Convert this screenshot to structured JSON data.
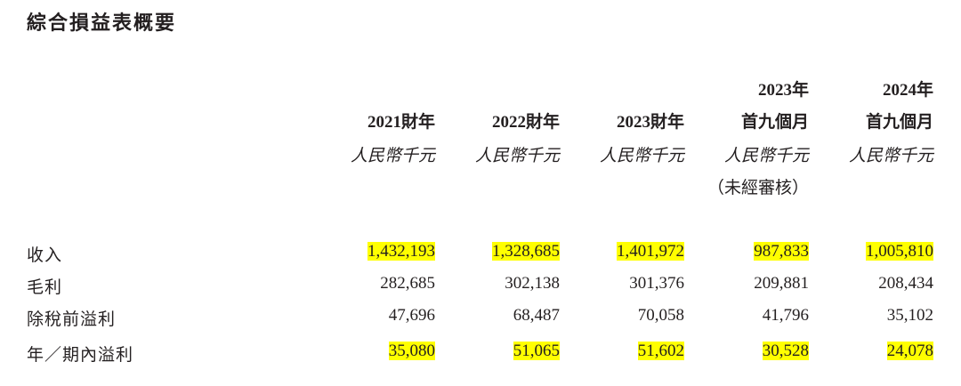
{
  "title": "綜合損益表概要",
  "columns": [
    {
      "line1": "",
      "line2": "2021財年",
      "unit": "人民幣千元",
      "note": ""
    },
    {
      "line1": "",
      "line2": "2022財年",
      "unit": "人民幣千元",
      "note": ""
    },
    {
      "line1": "",
      "line2": "2023財年",
      "unit": "人民幣千元",
      "note": ""
    },
    {
      "line1": "2023年",
      "line2": "首九個月",
      "unit": "人民幣千元",
      "note": "（未經審核）"
    },
    {
      "line1": "2024年",
      "line2": "首九個月",
      "unit": "人民幣千元",
      "note": ""
    }
  ],
  "rows": [
    {
      "label": "收入",
      "highlight": true,
      "values": [
        "1,432,193",
        "1,328,685",
        "1,401,972",
        "987,833",
        "1,005,810"
      ]
    },
    {
      "label": "毛利",
      "highlight": false,
      "values": [
        "282,685",
        "302,138",
        "301,376",
        "209,881",
        "208,434"
      ]
    },
    {
      "label": "除稅前溢利",
      "highlight": false,
      "values": [
        "47,696",
        "68,487",
        "70,058",
        "41,796",
        "35,102"
      ]
    },
    {
      "label": "年／期內溢利",
      "highlight": true,
      "values": [
        "35,080",
        "51,065",
        "51,602",
        "30,528",
        "24,078"
      ]
    }
  ],
  "highlight_color": "#ffff00"
}
